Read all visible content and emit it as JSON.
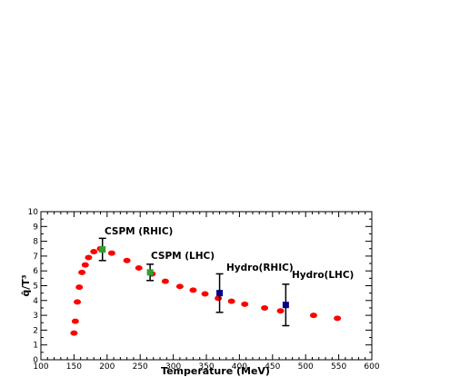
{
  "chart_data": {
    "type": "scatter",
    "title": "",
    "xlabel": "Temperature (MeV)",
    "ylabel": "q̂/T³",
    "xlim": [
      100,
      600
    ],
    "ylim": [
      0,
      10
    ],
    "x_ticks": [
      "100",
      "150",
      "200",
      "250",
      "300",
      "350",
      "400",
      "450",
      "500",
      "550",
      "600"
    ],
    "y_ticks": [
      "0",
      "1",
      "2",
      "3",
      "4",
      "5",
      "6",
      "7",
      "8",
      "9",
      "10"
    ],
    "grid": false,
    "series": [
      {
        "kind": "curve",
        "color": "#ff0000",
        "points": [
          [
            150,
            1.8
          ],
          [
            152,
            2.6
          ],
          [
            155,
            3.9
          ],
          [
            158,
            4.9
          ],
          [
            162,
            5.9
          ],
          [
            167,
            6.4
          ],
          [
            172,
            6.9
          ],
          [
            180,
            7.3
          ],
          [
            190,
            7.5
          ],
          [
            207,
            7.2
          ],
          [
            230,
            6.7
          ],
          [
            248,
            6.2
          ],
          [
            268,
            5.8
          ],
          [
            288,
            5.3
          ],
          [
            310,
            4.95
          ],
          [
            330,
            4.7
          ],
          [
            348,
            4.45
          ],
          [
            368,
            4.15
          ],
          [
            388,
            3.95
          ],
          [
            408,
            3.75
          ],
          [
            438,
            3.5
          ],
          [
            462,
            3.3
          ],
          [
            512,
            3.0
          ],
          [
            548,
            2.8
          ]
        ]
      },
      {
        "kind": "points_with_error",
        "color": "#2ca02c",
        "points": [
          {
            "x": 193,
            "y": 7.45,
            "err": 0.75,
            "label": "CSPM (RHIC)"
          },
          {
            "x": 265,
            "y": 5.9,
            "err": 0.55,
            "label": "CSPM (LHC)"
          }
        ]
      },
      {
        "kind": "points_with_error",
        "color": "#00008b",
        "points": [
          {
            "x": 370,
            "y": 4.5,
            "err": 1.3,
            "label": "Hydro(RHIC)"
          },
          {
            "x": 470,
            "y": 3.7,
            "err": 1.4,
            "label": "Hydro(LHC)"
          }
        ]
      }
    ],
    "annotations": [
      "CSPM (RHIC)",
      "CSPM (LHC)",
      "Hydro(RHIC)",
      "Hydro(LHC)"
    ]
  }
}
